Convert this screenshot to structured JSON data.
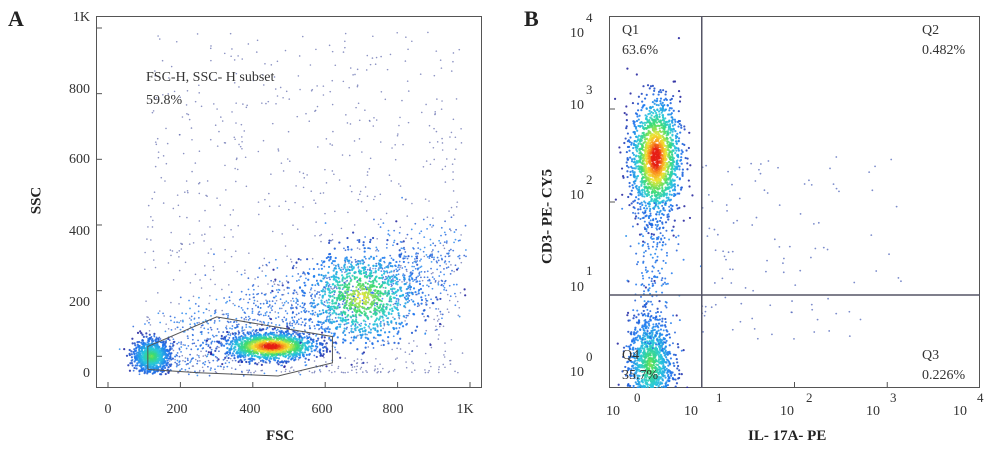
{
  "chart_data": [
    {
      "panel": "A",
      "type": "scatter",
      "xlabel": "FSC",
      "ylabel": "SSC",
      "xlim": [
        0,
        1000
      ],
      "ylim": [
        -60,
        1000
      ],
      "x_ticks": [
        "0",
        "200",
        "400",
        "600",
        "800",
        "1K"
      ],
      "x_tick_values": [
        0,
        200,
        400,
        600,
        800,
        1000
      ],
      "y_ticks": [
        "0",
        "200",
        "400",
        "600",
        "800",
        "1K"
      ],
      "y_tick_values": [
        0,
        200,
        400,
        600,
        800,
        1000
      ],
      "gate": {
        "name": "FSC-H, SSC- H subset",
        "percent": "59.8%",
        "polygon": [
          [
            110,
            -40
          ],
          [
            110,
            30
          ],
          [
            300,
            120
          ],
          [
            620,
            60
          ],
          [
            620,
            -20
          ],
          [
            470,
            -60
          ],
          [
            250,
            -50
          ]
        ]
      },
      "populations": [
        {
          "x": 450,
          "y": 30,
          "sx": 60,
          "sy": 20,
          "weight": 1.0
        },
        {
          "x": 120,
          "y": 0,
          "sx": 25,
          "sy": 25,
          "weight": 0.6
        },
        {
          "x": 700,
          "y": 180,
          "sx": 80,
          "sy": 70,
          "weight": 0.7
        }
      ]
    },
    {
      "panel": "B",
      "type": "scatter",
      "xlabel": "IL- 17A- PE",
      "ylabel": "CD3- PE- CY5",
      "xscale": "log",
      "yscale": "log",
      "xlim": [
        1,
        10000
      ],
      "ylim": [
        1,
        10000
      ],
      "x_ticks": [
        {
          "base": "10",
          "exp": "0"
        },
        {
          "base": "10",
          "exp": "1"
        },
        {
          "base": "10",
          "exp": "2"
        },
        {
          "base": "10",
          "exp": "3"
        },
        {
          "base": "10",
          "exp": "4"
        }
      ],
      "y_ticks": [
        {
          "base": "10",
          "exp": "0"
        },
        {
          "base": "10",
          "exp": "1"
        },
        {
          "base": "10",
          "exp": "2"
        },
        {
          "base": "10",
          "exp": "3"
        },
        {
          "base": "10",
          "exp": "4"
        }
      ],
      "quadrant_divider": {
        "x": 10,
        "y": 10
      },
      "quadrants": [
        {
          "name": "Q1",
          "percent": "63.6%"
        },
        {
          "name": "Q2",
          "percent": "0.482%"
        },
        {
          "name": "Q3",
          "percent": "0.226%"
        },
        {
          "name": "Q4",
          "percent": "35.7%"
        }
      ],
      "populations": [
        {
          "x": 3.2,
          "y": 300,
          "sx": 0.13,
          "sy": 0.3,
          "weight": 1.0
        },
        {
          "x": 2.8,
          "y": 1.8,
          "sx": 0.12,
          "sy": 0.25,
          "weight": 0.6
        }
      ]
    }
  ]
}
